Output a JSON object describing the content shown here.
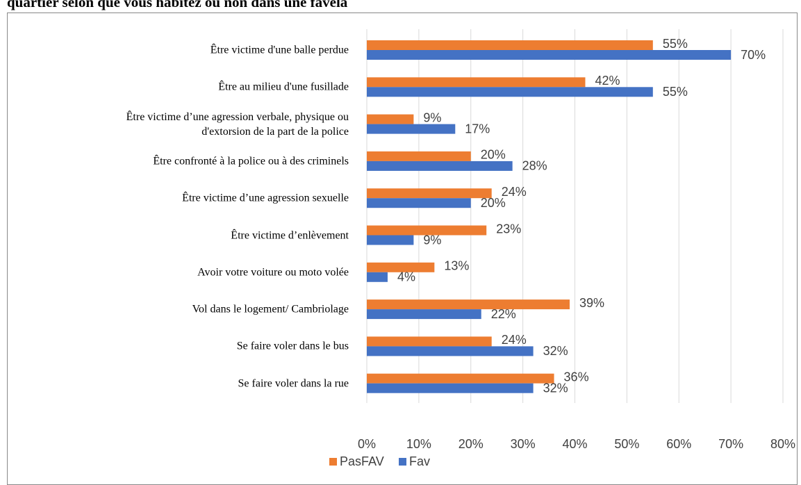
{
  "chart_data": {
    "type": "bar",
    "orientation": "horizontal",
    "title": "quartier selon que vous habitez ou non dans une favela",
    "categories": [
      "Être victime d'une balle perdue",
      "Être au milieu d'une fusillade",
      "Être victime d’une agression verbale, physique ou\nd'extorsion de la part de la police",
      "Être confronté à la police ou à des criminels",
      "Être victime d’une agression sexuelle",
      "Être victime d’enlèvement",
      "Avoir votre voiture ou moto volée",
      "Vol dans le logement/ Cambriolage",
      "Se faire voler dans le bus",
      "Se faire voler dans la rue"
    ],
    "series": [
      {
        "name": "PasFAV",
        "color": "#ed7d31",
        "values": [
          55,
          42,
          9,
          20,
          24,
          23,
          13,
          39,
          24,
          36
        ],
        "value_labels": [
          "55%",
          "42%",
          "9%",
          "20%",
          "24%",
          "23%",
          "13%",
          "39%",
          "24%",
          "36%"
        ]
      },
      {
        "name": "Fav",
        "color": "#4472c4",
        "values": [
          70,
          55,
          17,
          28,
          20,
          9,
          4,
          22,
          32,
          32
        ],
        "value_labels": [
          "70%",
          "55%",
          "17%",
          "28%",
          "20%",
          "9%",
          "4%",
          "22%",
          "32%",
          "32%"
        ]
      }
    ],
    "xlim": [
      0,
      80
    ],
    "xticks": [
      {
        "value": 0,
        "label": "0%"
      },
      {
        "value": 10,
        "label": "10%"
      },
      {
        "value": 20,
        "label": "20%"
      },
      {
        "value": 30,
        "label": "30%"
      },
      {
        "value": 40,
        "label": "40%"
      },
      {
        "value": 50,
        "label": "50%"
      },
      {
        "value": 60,
        "label": "60%"
      },
      {
        "value": 70,
        "label": "70%"
      },
      {
        "value": 80,
        "label": "80%"
      }
    ],
    "grid": true,
    "legend": "bottom"
  }
}
